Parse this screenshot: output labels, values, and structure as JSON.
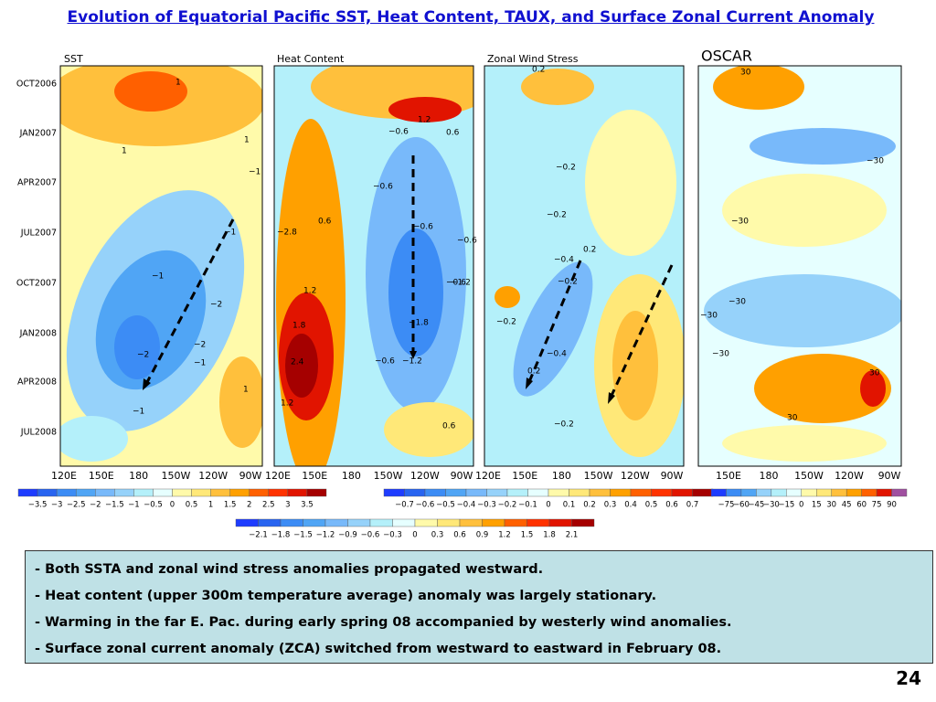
{
  "title": "Evolution of Equatorial Pacific SST, Heat Content, TAUX, and Surface Zonal Current Anomaly",
  "y_axis_labels": [
    "OCT2006",
    "JAN2007",
    "APR2007",
    "JUL2007",
    "OCT2007",
    "JAN2008",
    "APR2008",
    "JUL2008"
  ],
  "panels": [
    {
      "title": "SST",
      "x_labels": [
        "120E",
        "150E",
        "180",
        "150W",
        "120W",
        "90W"
      ],
      "contour_labels": [
        "1",
        "1",
        "1",
        "−1",
        "−1",
        "−2",
        "−2",
        "−2",
        "−1",
        "−1",
        "1",
        "−1"
      ]
    },
    {
      "title": "Heat Content",
      "x_labels": [
        "120E",
        "150E",
        "180",
        "150W",
        "120W",
        "90W"
      ],
      "contour_labels": [
        "1.2",
        "−0.6",
        "0.6",
        "−0.6",
        "−0.6",
        "0.6",
        "−0.6",
        "−0.6",
        "−1.2",
        "1.2",
        "1.8",
        "−1.8",
        "2.4",
        "−0.6",
        "−1.2",
        "1.2",
        "0.6",
        "−2.8"
      ]
    },
    {
      "title": "Zonal Wind Stress",
      "x_labels": [
        "120E",
        "150E",
        "180",
        "150W",
        "120W",
        "90W"
      ],
      "contour_labels": [
        "0.2",
        "−0.2",
        "−0.2",
        "0.2",
        "−0.4",
        "−0.2",
        "−0.2",
        "−0.4",
        "0.2",
        "−0.2"
      ]
    },
    {
      "title": "OSCAR",
      "x_labels": [
        "150E",
        "180",
        "150W",
        "120W",
        "90W"
      ],
      "contour_labels": [
        "30",
        "−30",
        "−30",
        "−30",
        "−30",
        "−30",
        "30",
        "30"
      ]
    }
  ],
  "colorbars": [
    {
      "labels": [
        "−3.5",
        "−3",
        "−2.5",
        "−2",
        "−1.5",
        "−1",
        "−0.5",
        "0",
        "0.5",
        "1",
        "1.5",
        "2",
        "2.5",
        "3",
        "3.5"
      ],
      "colors": [
        "#1e3cff",
        "#2864f0",
        "#3c8cf5",
        "#50a5f5",
        "#78b9fa",
        "#96d2fa",
        "#b4f0fa",
        "#e6ffff",
        "#fffaaa",
        "#ffe878",
        "#ffc03c",
        "#ffa000",
        "#ff6000",
        "#ff3200",
        "#e11400",
        "#a50000"
      ]
    },
    {
      "labels": [
        "−0.7",
        "−0.6",
        "−0.5",
        "−0.4",
        "−0.3",
        "−0.2",
        "−0.1",
        "0",
        "0.1",
        "0.2",
        "0.3",
        "0.4",
        "0.5",
        "0.6",
        "0.7"
      ],
      "colors": [
        "#1e3cff",
        "#2864f0",
        "#3c8cf5",
        "#50a5f5",
        "#78b9fa",
        "#96d2fa",
        "#b4f0fa",
        "#e6ffff",
        "#fffaaa",
        "#ffe878",
        "#ffc03c",
        "#ffa000",
        "#ff6000",
        "#ff3200",
        "#e11400",
        "#a50000"
      ]
    },
    {
      "labels": [
        "−75",
        "−60",
        "−45",
        "−30",
        "−15",
        "0",
        "15",
        "30",
        "45",
        "60",
        "75",
        "90"
      ],
      "colors": [
        "#1e3cff",
        "#3c8cf5",
        "#50a5f5",
        "#96d2fa",
        "#b4f0fa",
        "#e6ffff",
        "#fffaaa",
        "#ffe878",
        "#ffc03c",
        "#ffa000",
        "#ff6000",
        "#e11400",
        "#a050a0"
      ]
    },
    {
      "labels": [
        "−2.1",
        "−1.8",
        "−1.5",
        "−1.2",
        "−0.9",
        "−0.6",
        "−0.3",
        "0",
        "0.3",
        "0.6",
        "0.9",
        "1.2",
        "1.5",
        "1.8",
        "2.1"
      ],
      "colors": [
        "#1e3cff",
        "#2864f0",
        "#3c8cf5",
        "#50a5f5",
        "#78b9fa",
        "#96d2fa",
        "#b4f0fa",
        "#e6ffff",
        "#fffaaa",
        "#ffe878",
        "#ffc03c",
        "#ffa000",
        "#ff6000",
        "#ff3200",
        "#e11400",
        "#a50000"
      ]
    }
  ],
  "bullets": [
    "Both SSTA and zonal wind stress anomalies propagated westward.",
    "Heat content  (upper 300m temperature average) anomaly was largely stationary.",
    "Warming in the far E. Pac. during early spring 08 accompanied by westerly wind anomalies.",
    "Surface zonal current anomaly (ZCA) switched from westward to eastward in February 08."
  ],
  "page_number": "24"
}
